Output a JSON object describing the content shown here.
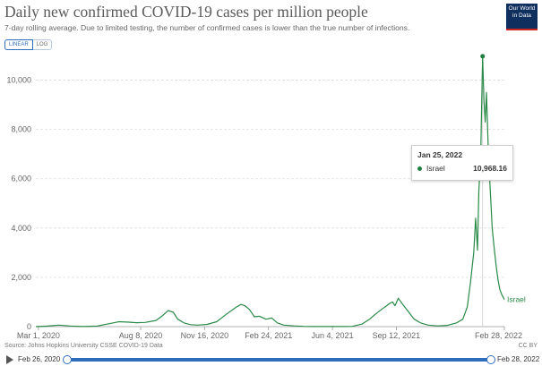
{
  "header": {
    "title": "Daily new confirmed COVID-19 cases per million people",
    "subtitle": "7-day rolling average. Due to limited testing, the number of confirmed cases is lower than the true number of infections.",
    "logo_line1": "Our World",
    "logo_line2": "in Data"
  },
  "controls": {
    "linear_label": "LINEAR",
    "log_label": "LOG",
    "active_scale": "linear"
  },
  "tooltip": {
    "date": "Jan 25, 2022",
    "series": "Israel",
    "value": "10,968.16"
  },
  "footer": {
    "source": "Source: Johns Hopkins University CSSE COVID-19 Data",
    "license": "CC BY"
  },
  "timeline": {
    "start_label": "Feb 26, 2020",
    "end_label": "Feb 28, 2022"
  },
  "colors": {
    "series": "#2a8a47",
    "accent": "#2e6dbb",
    "grid": "#dddddd"
  },
  "chart_data": {
    "type": "line",
    "title": "Daily new confirmed COVID-19 cases per million people",
    "xlabel": "",
    "ylabel": "",
    "y_scale": "linear",
    "ylim": [
      0,
      11000
    ],
    "yticks": [
      0,
      2000,
      4000,
      6000,
      8000,
      10000
    ],
    "ytick_labels": [
      "0",
      "2,000",
      "4,000",
      "6,000",
      "8,000",
      "10,000"
    ],
    "xlim": [
      "2020-02-26",
      "2022-02-28"
    ],
    "xticks": [
      "2020-03-01",
      "2020-08-08",
      "2020-11-16",
      "2021-02-24",
      "2021-06-04",
      "2021-09-12",
      "2022-02-28"
    ],
    "xtick_labels": [
      "Mar 1, 2020",
      "Aug 8, 2020",
      "Nov 16, 2020",
      "Feb 24, 2021",
      "Jun 4, 2021",
      "Sep 12, 2021",
      "Feb 28, 2022"
    ],
    "grid": true,
    "legend": "none",
    "series": [
      {
        "name": "Israel",
        "x": [
          "2020-02-26",
          "2020-03-15",
          "2020-04-02",
          "2020-04-20",
          "2020-05-10",
          "2020-06-01",
          "2020-06-20",
          "2020-07-05",
          "2020-07-20",
          "2020-08-01",
          "2020-08-15",
          "2020-09-01",
          "2020-09-10",
          "2020-09-20",
          "2020-09-28",
          "2020-10-05",
          "2020-10-15",
          "2020-10-25",
          "2020-11-05",
          "2020-11-20",
          "2020-12-05",
          "2020-12-20",
          "2021-01-05",
          "2021-01-12",
          "2021-01-18",
          "2021-01-25",
          "2021-02-02",
          "2021-02-10",
          "2021-02-20",
          "2021-03-01",
          "2021-03-10",
          "2021-03-20",
          "2021-04-05",
          "2021-04-20",
          "2021-05-05",
          "2021-05-20",
          "2021-06-04",
          "2021-06-20",
          "2021-07-05",
          "2021-07-20",
          "2021-08-01",
          "2021-08-10",
          "2021-08-20",
          "2021-08-28",
          "2021-09-02",
          "2021-09-06",
          "2021-09-10",
          "2021-09-15",
          "2021-09-22",
          "2021-10-01",
          "2021-10-10",
          "2021-10-20",
          "2021-11-01",
          "2021-11-15",
          "2021-12-01",
          "2021-12-15",
          "2021-12-25",
          "2022-01-01",
          "2022-01-06",
          "2022-01-11",
          "2022-01-14",
          "2022-01-17",
          "2022-01-19",
          "2022-01-22",
          "2022-01-25",
          "2022-01-27",
          "2022-01-29",
          "2022-01-31",
          "2022-02-03",
          "2022-02-06",
          "2022-02-09",
          "2022-02-12",
          "2022-02-15",
          "2022-02-18",
          "2022-02-21",
          "2022-02-24",
          "2022-02-28"
        ],
        "values": [
          0,
          20,
          60,
          25,
          5,
          20,
          120,
          200,
          180,
          160,
          170,
          250,
          420,
          650,
          580,
          300,
          150,
          80,
          60,
          90,
          200,
          500,
          800,
          900,
          850,
          700,
          400,
          420,
          300,
          350,
          150,
          60,
          30,
          10,
          5,
          5,
          5,
          5,
          10,
          100,
          300,
          500,
          700,
          850,
          950,
          1000,
          850,
          1150,
          900,
          600,
          300,
          150,
          60,
          30,
          50,
          150,
          300,
          800,
          1800,
          3000,
          4400,
          3100,
          5500,
          7000,
          10968,
          9200,
          8300,
          9500,
          7000,
          5500,
          4000,
          3200,
          2500,
          1900,
          1500,
          1300,
          1100
        ]
      }
    ],
    "highlight": {
      "x": "2022-01-25",
      "y": 10968.16
    }
  }
}
